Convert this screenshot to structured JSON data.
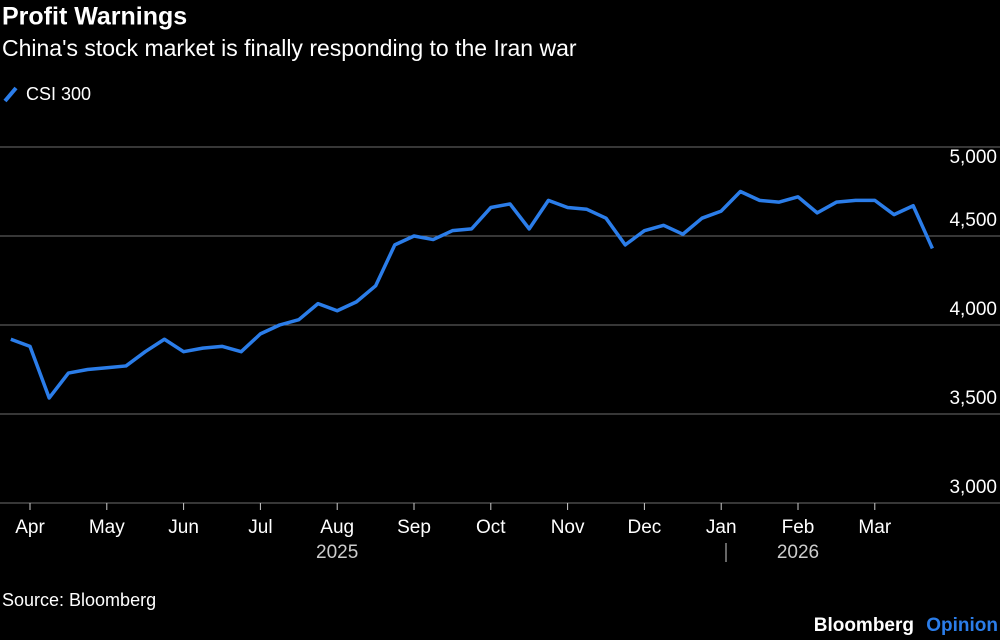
{
  "chart_data": {
    "type": "line",
    "title": "Profit Warnings",
    "subtitle": "China's stock market is finally responding to the Iran war",
    "source": "Source: Bloomberg",
    "brand": "Bloomberg",
    "brand_suffix": "Opinion",
    "x": [
      "2025-03",
      "2025-04",
      "2025-04",
      "2025-04",
      "2025-04",
      "2025-05",
      "2025-05",
      "2025-05",
      "2025-05",
      "2025-06",
      "2025-06",
      "2025-06",
      "2025-06",
      "2025-07",
      "2025-07",
      "2025-07",
      "2025-07",
      "2025-08",
      "2025-08",
      "2025-08",
      "2025-08",
      "2025-09",
      "2025-09",
      "2025-09",
      "2025-09",
      "2025-10",
      "2025-10",
      "2025-10",
      "2025-10",
      "2025-11",
      "2025-11",
      "2025-11",
      "2025-11",
      "2025-12",
      "2025-12",
      "2025-12",
      "2025-12",
      "2026-01",
      "2026-01",
      "2026-01",
      "2026-01",
      "2026-02",
      "2026-02",
      "2026-02",
      "2026-02",
      "2026-03",
      "2026-03",
      "2026-03",
      "2026-03"
    ],
    "series": [
      {
        "name": "CSI 300",
        "color": "#2b7de9",
        "values": [
          3920,
          3880,
          3590,
          3730,
          3750,
          3760,
          3770,
          3850,
          3920,
          3850,
          3870,
          3880,
          3850,
          3950,
          4000,
          4030,
          4120,
          4080,
          4130,
          4220,
          4450,
          4500,
          4480,
          4530,
          4540,
          4660,
          4680,
          4540,
          4700,
          4660,
          4650,
          4600,
          4450,
          4530,
          4560,
          4510,
          4600,
          4640,
          4750,
          4700,
          4690,
          4720,
          4630,
          4690,
          4700,
          4700,
          4620,
          4670,
          4430
        ]
      }
    ],
    "xticks": [
      {
        "value": "2025-04",
        "label": "Apr"
      },
      {
        "value": "2025-05",
        "label": "May"
      },
      {
        "value": "2025-06",
        "label": "Jun"
      },
      {
        "value": "2025-07",
        "label": "Jul"
      },
      {
        "value": "2025-08",
        "label": "Aug"
      },
      {
        "value": "2025-09",
        "label": "Sep"
      },
      {
        "value": "2025-10",
        "label": "Oct"
      },
      {
        "value": "2025-11",
        "label": "Nov"
      },
      {
        "value": "2025-12",
        "label": "Dec"
      },
      {
        "value": "2026-01",
        "label": "Jan"
      },
      {
        "value": "2026-02",
        "label": "Feb"
      },
      {
        "value": "2026-03",
        "label": "Mar"
      }
    ],
    "year_labels": [
      "2025",
      "2026"
    ],
    "ylim": [
      3000,
      5000
    ],
    "yticks": [
      {
        "value": 3000,
        "label": "3,000"
      },
      {
        "value": 3500,
        "label": "3,500"
      },
      {
        "value": 4000,
        "label": "4,000"
      },
      {
        "value": 4500,
        "label": "4,500"
      },
      {
        "value": 5000,
        "label": "5,000"
      }
    ],
    "grid": true
  }
}
